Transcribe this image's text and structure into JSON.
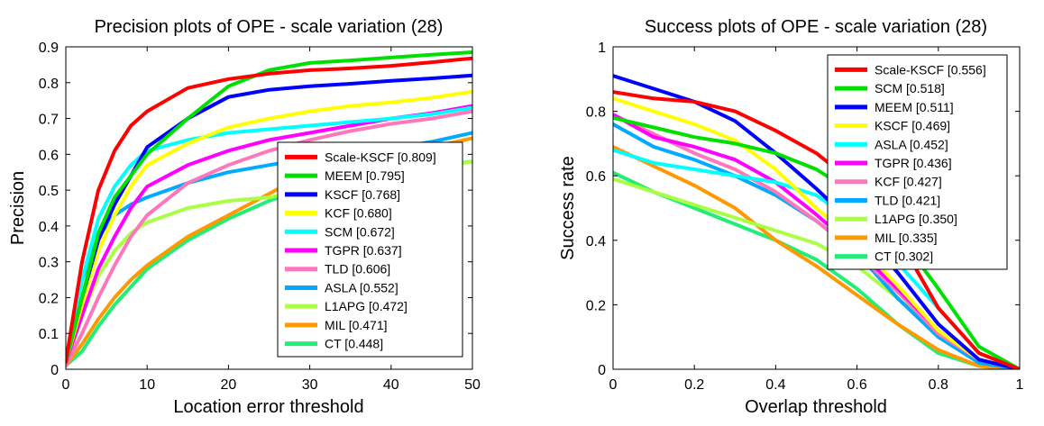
{
  "chart_data": [
    {
      "type": "line",
      "title": "Precision plots of OPE - scale variation (28)",
      "xlabel": "Location error threshold",
      "ylabel": "Precision",
      "xlim": [
        0,
        50
      ],
      "ylim": [
        0,
        0.9
      ],
      "xticks": [
        "0",
        "10",
        "20",
        "30",
        "40",
        "50"
      ],
      "yticks": [
        "0",
        "0.1",
        "0.2",
        "0.3",
        "0.4",
        "0.5",
        "0.6",
        "0.7",
        "0.8",
        "0.9"
      ],
      "legend_position": "lower-right",
      "x": [
        0,
        2,
        4,
        6,
        8,
        10,
        15,
        20,
        25,
        30,
        35,
        40,
        45,
        50
      ],
      "series": [
        {
          "name": "Scale-KSCF [0.809]",
          "color": "#ff0000",
          "values": [
            0.02,
            0.3,
            0.5,
            0.61,
            0.68,
            0.72,
            0.785,
            0.81,
            0.825,
            0.835,
            0.84,
            0.847,
            0.857,
            0.868
          ]
        },
        {
          "name": "MEEM [0.795]",
          "color": "#00e000",
          "values": [
            0.02,
            0.2,
            0.38,
            0.48,
            0.54,
            0.6,
            0.7,
            0.79,
            0.835,
            0.855,
            0.862,
            0.87,
            0.878,
            0.885
          ]
        },
        {
          "name": "KSCF [0.768]",
          "color": "#0000ff",
          "values": [
            0.02,
            0.2,
            0.36,
            0.46,
            0.54,
            0.62,
            0.7,
            0.76,
            0.78,
            0.79,
            0.797,
            0.805,
            0.812,
            0.82
          ]
        },
        {
          "name": "KCF [0.680]",
          "color": "#ffff00",
          "values": [
            0.02,
            0.18,
            0.33,
            0.43,
            0.51,
            0.57,
            0.63,
            0.675,
            0.7,
            0.72,
            0.735,
            0.745,
            0.758,
            0.775
          ]
        },
        {
          "name": "SCM [0.672]",
          "color": "#00ffff",
          "values": [
            0.02,
            0.25,
            0.42,
            0.51,
            0.57,
            0.61,
            0.64,
            0.66,
            0.67,
            0.68,
            0.69,
            0.7,
            0.712,
            0.73
          ]
        },
        {
          "name": "TGPR [0.637]",
          "color": "#ff00ff",
          "values": [
            0.02,
            0.15,
            0.28,
            0.37,
            0.45,
            0.51,
            0.57,
            0.61,
            0.64,
            0.66,
            0.68,
            0.7,
            0.715,
            0.735
          ]
        },
        {
          "name": "TLD [0.606]",
          "color": "#ff77bb",
          "values": [
            0.01,
            0.1,
            0.2,
            0.29,
            0.37,
            0.43,
            0.52,
            0.57,
            0.61,
            0.64,
            0.665,
            0.685,
            0.7,
            0.72
          ]
        },
        {
          "name": "ASLA [0.552]",
          "color": "#00aaff",
          "values": [
            0.02,
            0.25,
            0.37,
            0.43,
            0.46,
            0.48,
            0.52,
            0.55,
            0.57,
            0.59,
            0.605,
            0.615,
            0.635,
            0.66
          ]
        },
        {
          "name": "L1APG [0.472]",
          "color": "#aaff44",
          "values": [
            0.01,
            0.15,
            0.26,
            0.33,
            0.38,
            0.41,
            0.45,
            0.47,
            0.48,
            0.5,
            0.52,
            0.54,
            0.56,
            0.58
          ]
        },
        {
          "name": "MIL [0.471]",
          "color": "#ff9900",
          "values": [
            0.01,
            0.07,
            0.14,
            0.2,
            0.25,
            0.29,
            0.37,
            0.43,
            0.49,
            0.55,
            0.58,
            0.6,
            0.62,
            0.645
          ]
        },
        {
          "name": "CT [0.448]",
          "color": "#22ee77",
          "values": [
            0.01,
            0.05,
            0.12,
            0.18,
            0.23,
            0.28,
            0.36,
            0.42,
            0.47,
            0.51,
            0.53,
            0.55,
            0.565,
            0.58
          ]
        }
      ]
    },
    {
      "type": "line",
      "title": "Success plots of OPE - scale variation (28)",
      "xlabel": "Overlap threshold",
      "ylabel": "Success rate",
      "xlim": [
        0,
        1
      ],
      "ylim": [
        0,
        1
      ],
      "xticks": [
        "0",
        "0.2",
        "0.4",
        "0.6",
        "0.8",
        "1"
      ],
      "yticks": [
        "0",
        "0.2",
        "0.4",
        "0.6",
        "0.8",
        "1"
      ],
      "legend_position": "top-right",
      "x": [
        0,
        0.1,
        0.2,
        0.3,
        0.4,
        0.5,
        0.6,
        0.7,
        0.8,
        0.9,
        1.0
      ],
      "series": [
        {
          "name": "Scale-KSCF [0.556]",
          "color": "#ff0000",
          "values": [
            0.86,
            0.84,
            0.83,
            0.8,
            0.74,
            0.67,
            0.57,
            0.41,
            0.19,
            0.05,
            0.0
          ]
        },
        {
          "name": "SCM [0.518]",
          "color": "#00e000",
          "values": [
            0.78,
            0.75,
            0.72,
            0.7,
            0.67,
            0.62,
            0.54,
            0.42,
            0.25,
            0.07,
            0.0
          ]
        },
        {
          "name": "MEEM [0.511]",
          "color": "#0000ff",
          "values": [
            0.91,
            0.87,
            0.83,
            0.77,
            0.67,
            0.56,
            0.44,
            0.3,
            0.14,
            0.03,
            0.0
          ]
        },
        {
          "name": "KSCF [0.469]",
          "color": "#ffff00",
          "values": [
            0.84,
            0.8,
            0.76,
            0.71,
            0.62,
            0.5,
            0.39,
            0.26,
            0.12,
            0.03,
            0.0
          ]
        },
        {
          "name": "ASLA [0.452]",
          "color": "#00ffff",
          "values": [
            0.68,
            0.64,
            0.62,
            0.6,
            0.58,
            0.54,
            0.45,
            0.33,
            0.19,
            0.05,
            0.0
          ]
        },
        {
          "name": "TGPR [0.436]",
          "color": "#ff00ff",
          "values": [
            0.79,
            0.72,
            0.69,
            0.65,
            0.58,
            0.48,
            0.37,
            0.25,
            0.12,
            0.03,
            0.0
          ]
        },
        {
          "name": "KCF [0.427]",
          "color": "#ff77bb",
          "values": [
            0.79,
            0.73,
            0.67,
            0.62,
            0.55,
            0.46,
            0.36,
            0.24,
            0.11,
            0.03,
            0.0
          ]
        },
        {
          "name": "TLD [0.421]",
          "color": "#00aaff",
          "values": [
            0.76,
            0.69,
            0.65,
            0.6,
            0.54,
            0.46,
            0.36,
            0.22,
            0.1,
            0.02,
            0.0
          ]
        },
        {
          "name": "L1APG [0.350]",
          "color": "#aaff44",
          "values": [
            0.59,
            0.55,
            0.51,
            0.47,
            0.43,
            0.39,
            0.32,
            0.22,
            0.11,
            0.03,
            0.0
          ]
        },
        {
          "name": "MIL [0.335]",
          "color": "#ff9900",
          "values": [
            0.69,
            0.63,
            0.57,
            0.5,
            0.4,
            0.32,
            0.23,
            0.14,
            0.06,
            0.01,
            0.0
          ]
        },
        {
          "name": "CT [0.302]",
          "color": "#22ee77",
          "values": [
            0.61,
            0.55,
            0.5,
            0.45,
            0.4,
            0.34,
            0.25,
            0.14,
            0.05,
            0.01,
            0.0
          ]
        }
      ]
    }
  ]
}
